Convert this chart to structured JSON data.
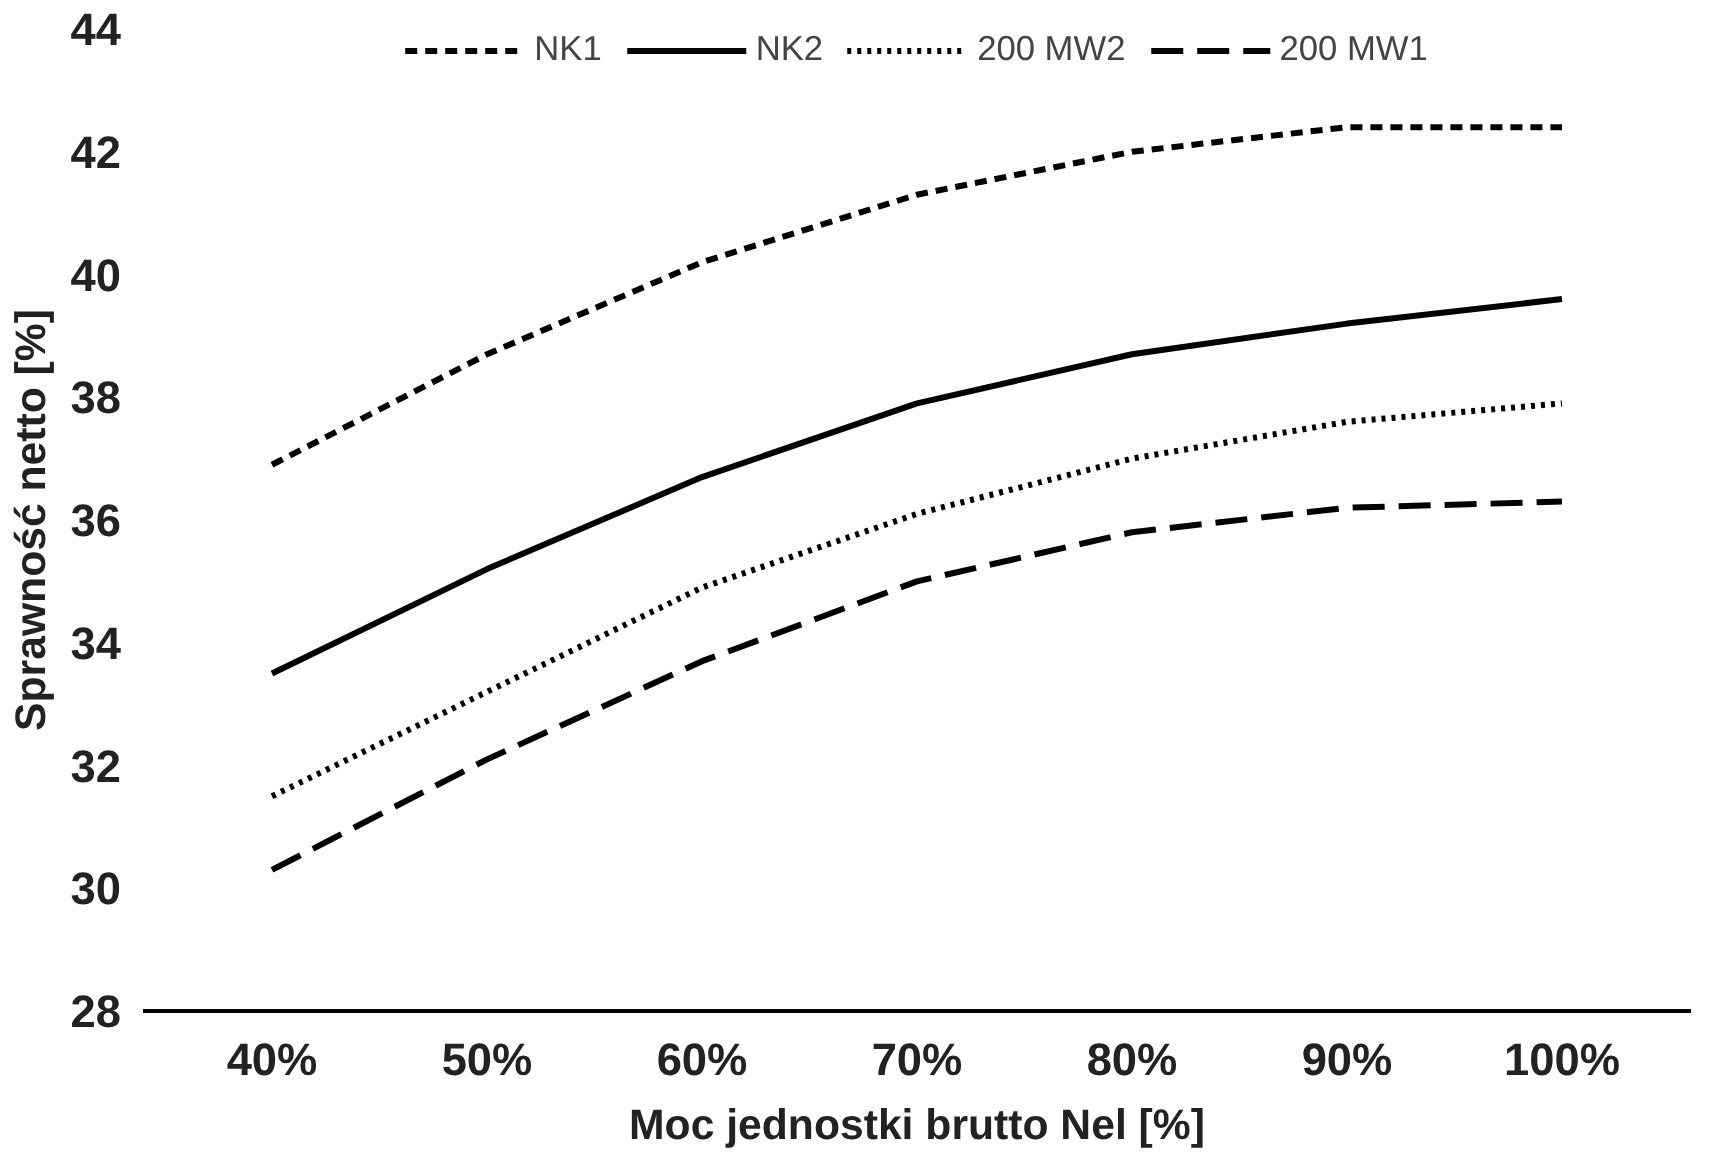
{
  "chart_data": {
    "type": "line",
    "xlabel": "Moc jednostki brutto Nel [%]",
    "ylabel": "Sprawność netto [%]",
    "categories": [
      "40%",
      "50%",
      "60%",
      "70%",
      "80%",
      "90%",
      "100%"
    ],
    "ylim": [
      28,
      44
    ],
    "yticks": [
      28,
      30,
      32,
      34,
      36,
      38,
      40,
      42,
      44
    ],
    "grid": false,
    "legend": "top",
    "marker": "none",
    "series": [
      {
        "name": "NK1",
        "color": "#000000",
        "line_style": "dashed",
        "values": [
          36.9,
          38.7,
          40.2,
          41.3,
          42.0,
          42.4,
          42.4
        ]
      },
      {
        "name": "NK2",
        "color": "#000000",
        "line_style": "solid",
        "values": [
          33.5,
          35.2,
          36.7,
          37.9,
          38.7,
          39.2,
          39.6
        ]
      },
      {
        "name": "200 MW2",
        "color": "#000000",
        "line_style": "dotted",
        "values": [
          31.5,
          33.2,
          34.9,
          36.1,
          37.0,
          37.6,
          37.9
        ]
      },
      {
        "name": "200 MW1",
        "color": "#000000",
        "line_style": "longdash",
        "values": [
          30.3,
          32.1,
          33.7,
          35.0,
          35.8,
          36.2,
          36.3
        ]
      }
    ]
  }
}
